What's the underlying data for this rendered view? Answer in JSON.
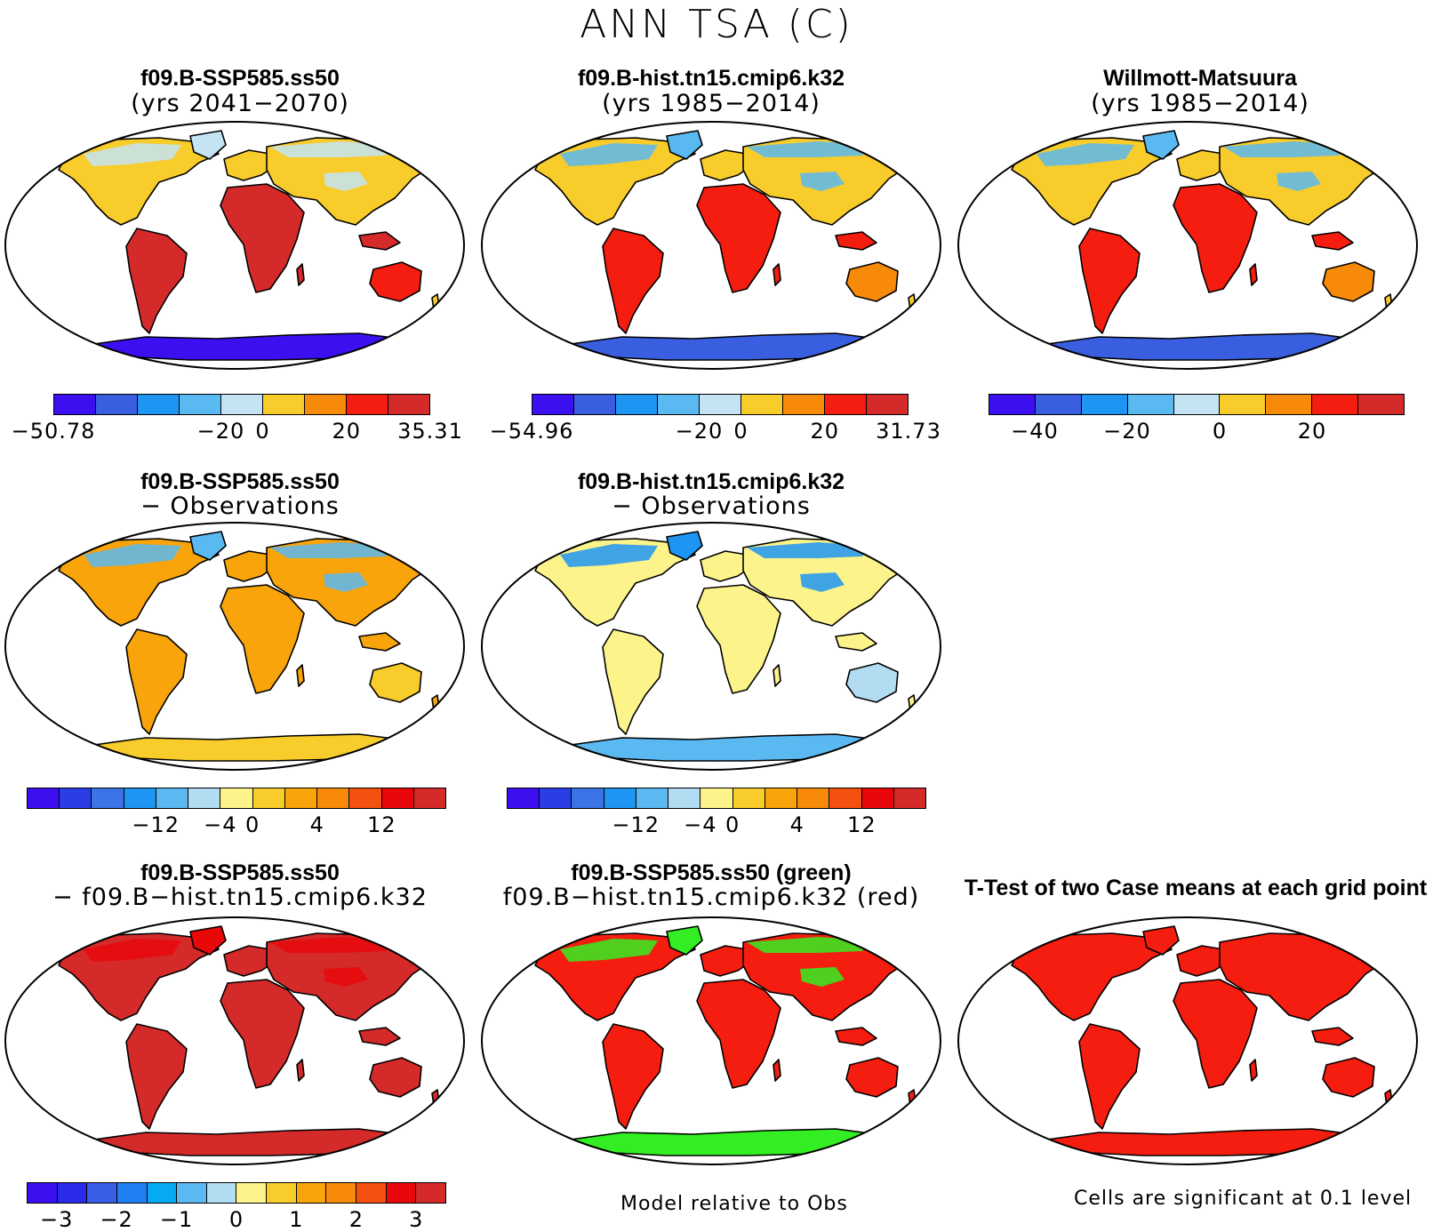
{
  "title": "ANN TSA (C)",
  "panels": {
    "p1": {
      "title": "f09.B-SSP585.ss50",
      "subtitle": "(yrs 2041−2070)"
    },
    "p2": {
      "title": "f09.B-hist.tn15.cmip6.k32",
      "subtitle": "(yrs 1985−2014)"
    },
    "p3": {
      "title": "Willmott-Matsuura",
      "subtitle": "(yrs 1985−2014)"
    },
    "p4": {
      "title": "f09.B-SSP585.ss50",
      "subtitle": "− Observations"
    },
    "p5": {
      "title": "f09.B-hist.tn15.cmip6.k32",
      "subtitle": "− Observations"
    },
    "p7": {
      "title": "f09.B-SSP585.ss50",
      "subtitle": "− f09.B−hist.tn15.cmip6.k32"
    },
    "p8": {
      "title": "f09.B-SSP585.ss50 (green)",
      "subtitle": "f09.B−hist.tn15.cmip6.k32 (red)"
    },
    "p9": {
      "title": "T-Test of two Case means at each grid point"
    }
  },
  "colorbars": {
    "abs1": {
      "colors": [
        "#3b0ff0",
        "#3a5ee0",
        "#1f95f3",
        "#5ab9f1",
        "#c4e4f4",
        "#f8cc2b",
        "#f88a0a",
        "#f41d0f",
        "#d42a2a"
      ],
      "labels": [
        "−50.78",
        "−20",
        "0",
        "20",
        "35.31"
      ]
    },
    "abs2": {
      "colors": [
        "#3b0ff0",
        "#3a5ee0",
        "#1f95f3",
        "#5ab9f1",
        "#c4e4f4",
        "#f8cc2b",
        "#f88a0a",
        "#f41d0f",
        "#d42a2a"
      ],
      "labels": [
        "−54.96",
        "−20",
        "0",
        "20",
        "31.73"
      ]
    },
    "abs3": {
      "colors": [
        "#3b0ff0",
        "#3a5ee0",
        "#1f95f3",
        "#5ab9f1",
        "#c4e4f4",
        "#f8cc2b",
        "#f88a0a",
        "#f41d0f",
        "#d42a2a"
      ],
      "labels": [
        "−40",
        "−20",
        "0",
        "20"
      ]
    },
    "diff1": {
      "colors": [
        "#3b0ff0",
        "#2a3ee8",
        "#3b74e6",
        "#1f95f3",
        "#5ab9f1",
        "#b2dcf2",
        "#fcf48a",
        "#f8cc2b",
        "#f8a40a",
        "#f88a0a",
        "#f4500f",
        "#e8080a",
        "#d42a2a"
      ],
      "labels": [
        "−12",
        "−4",
        "0",
        "4",
        "12"
      ]
    },
    "diff2": {
      "colors": [
        "#3b0ff0",
        "#2a3ee8",
        "#3b74e6",
        "#1f95f3",
        "#5ab9f1",
        "#b2dcf2",
        "#fcf48a",
        "#f8cc2b",
        "#f8a40a",
        "#f88a0a",
        "#f4500f",
        "#e8080a",
        "#d42a2a"
      ],
      "labels": [
        "−12",
        "−4",
        "0",
        "4",
        "12"
      ]
    },
    "case": {
      "colors": [
        "#3b0ff0",
        "#2a2ae8",
        "#3b5ee6",
        "#1f80f3",
        "#06aaf2",
        "#5ab9f1",
        "#b2dcf2",
        "#fcf48a",
        "#f8cc2b",
        "#f8a40a",
        "#f88a0a",
        "#f4500f",
        "#e8080a",
        "#d42a2a"
      ],
      "labels": [
        "−3",
        "−2",
        "−1",
        "0",
        "1",
        "2",
        "3"
      ]
    }
  },
  "footnotes": {
    "model_rel": "Model relative to Obs",
    "significance": "Cells are significant at 0.1 level"
  },
  "map_palettes": {
    "p1": {
      "n": "#f8cc2b",
      "s": "#f41d0f",
      "t": "#d42a2a",
      "ice": "#3b0ff0",
      "hi": "#c4e4f4"
    },
    "p2": {
      "n": "#f8cc2b",
      "s": "#f88a0a",
      "t": "#f41d0f",
      "ice": "#3a5ee0",
      "hi": "#5ab9f1"
    },
    "p3": {
      "n": "#f8cc2b",
      "s": "#f88a0a",
      "t": "#f41d0f",
      "ice": "#3a5ee0",
      "hi": "#5ab9f1"
    },
    "p4": {
      "n": "#f8a40a",
      "s": "#f8cc2b",
      "t": "#f8a40a",
      "ice": "#f8cc2b",
      "hi": "#5ab9f1"
    },
    "p5": {
      "n": "#fcf48a",
      "s": "#b2dcf2",
      "t": "#fcf48a",
      "ice": "#5ab9f1",
      "hi": "#1f95f3"
    },
    "p7": {
      "n": "#d42a2a",
      "s": "#d42a2a",
      "t": "#d42a2a",
      "ice": "#d42a2a",
      "hi": "#e8080a"
    },
    "p8": {
      "n": "#f41d0f",
      "s": "#f41d0f",
      "t": "#f41d0f",
      "ice": "#33ee22",
      "hi": "#33ee22"
    },
    "p9": {
      "n": "#f41d0f",
      "s": "#f41d0f",
      "t": "#f41d0f",
      "ice": "#f41d0f",
      "hi": "#f41d0f"
    }
  }
}
